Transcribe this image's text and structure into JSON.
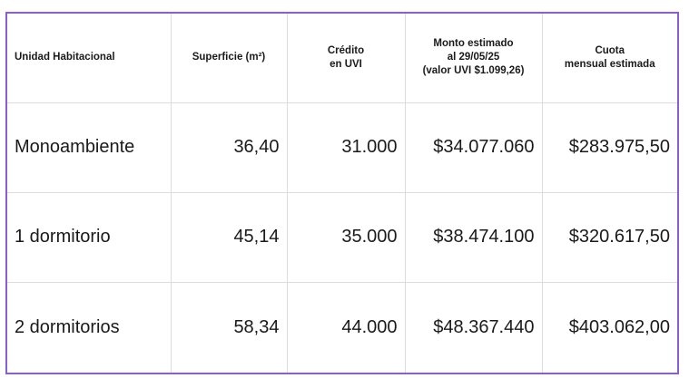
{
  "table": {
    "headers": [
      "Unidad Habitacional",
      "Superficie (m²)",
      "Crédito\nen UVI",
      "Monto estimado\nal 29/05/25\n(valor UVI $1.099,26)",
      "Cuota\nmensual estimada"
    ],
    "rows": [
      [
        "Monoambiente",
        "36,40",
        "31.000",
        "$34.077.060",
        "$283.975,50"
      ],
      [
        "1 dormitorio",
        "45,14",
        "35.000",
        "$38.474.100",
        "$320.617,50"
      ],
      [
        "2 dormitorios",
        "58,34",
        "44.000",
        "$48.367.440",
        "$403.062,00"
      ]
    ]
  },
  "colors": {
    "frame_border": "#8a5cd6",
    "cell_border": "#dcdcdc",
    "text": "#1a1a1a"
  }
}
